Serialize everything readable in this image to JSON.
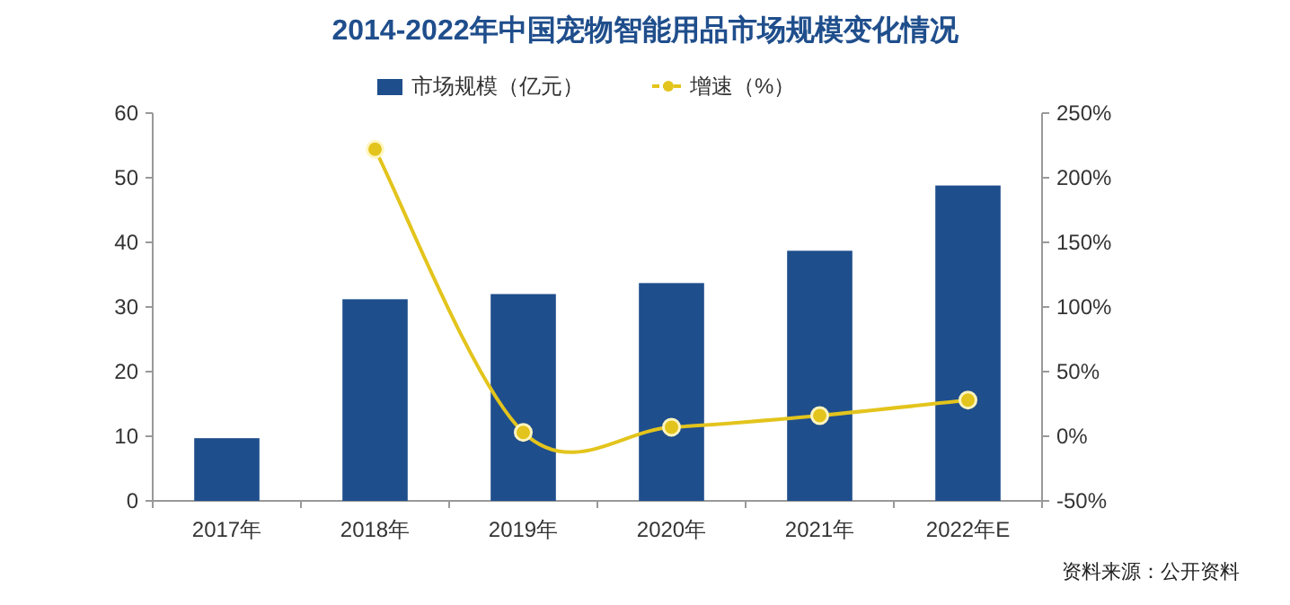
{
  "chart_data": {
    "type": "bar",
    "title": "2014-2022年中国宠物智能用品市场规模变化情况",
    "categories": [
      "2017年",
      "2018年",
      "2019年",
      "2020年",
      "2021年",
      "2022年E"
    ],
    "series": [
      {
        "name": "市场规模（亿元）",
        "color": "#1f4e8c",
        "values": [
          9.7,
          31.2,
          32.0,
          33.7,
          38.7,
          48.8
        ]
      },
      {
        "name": "增速（%）",
        "type": "line",
        "axis": "y2",
        "color": "#e3c41c",
        "marker": "circle",
        "values": [
          null,
          222,
          3,
          7,
          16,
          28
        ]
      }
    ],
    "ylim": [
      0,
      60
    ],
    "yticks": [
      0,
      10,
      20,
      30,
      40,
      50,
      60
    ],
    "y2lim": [
      -50,
      250
    ],
    "y2ticks": [
      {
        "value": -50,
        "label": "-50%"
      },
      {
        "value": 0,
        "label": "0%"
      },
      {
        "value": 50,
        "label": "50%"
      },
      {
        "value": 100,
        "label": "100%"
      },
      {
        "value": 150,
        "label": "150%"
      },
      {
        "value": 200,
        "label": "200%"
      },
      {
        "value": 250,
        "label": "250%"
      }
    ],
    "legend": "top",
    "grid": false,
    "annotations": [
      "资料来源：公开资料"
    ]
  }
}
